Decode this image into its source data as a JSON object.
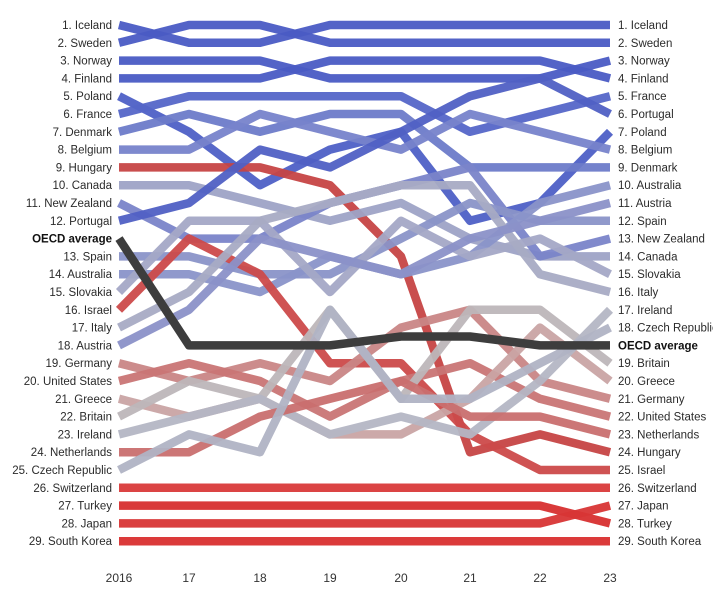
{
  "chart_data": {
    "type": "line",
    "subtype": "bump",
    "x": [
      "2016",
      "17",
      "18",
      "19",
      "20",
      "21",
      "22",
      "23"
    ],
    "rank_axis": {
      "min": 1,
      "max": 29,
      "oecd_slot_after_rank": 12,
      "inverted": true
    },
    "grid": false,
    "legend": "none",
    "left_labels": [
      "1. Iceland",
      "2. Sweden",
      "3. Norway",
      "4. Finland",
      "5. Poland",
      "6. France",
      "7. Denmark",
      "8. Belgium",
      "9. Hungary",
      "10. Canada",
      "11. New Zealand",
      "12. Portugal",
      "OECD average",
      "13. Spain",
      "14. Australia",
      "15. Slovakia",
      "16. Israel",
      "17. Italy",
      "18. Austria",
      "19. Germany",
      "20. United States",
      "21. Greece",
      "22. Britain",
      "23. Ireland",
      "24. Netherlands",
      "25. Czech Republic",
      "26. Switzerland",
      "27. Turkey",
      "28. Japan",
      "29. South Korea"
    ],
    "right_labels": [
      "1. Iceland",
      "2. Sweden",
      "3. Norway",
      "4. Finland",
      "5. France",
      "6. Portugal",
      "7. Poland",
      "8. Belgium",
      "9. Denmark",
      "10. Australia",
      "11. Austria",
      "12. Spain",
      "13. New Zealand",
      "14. Canada",
      "15. Slovakia",
      "16. Italy",
      "17. Ireland",
      "18. Czech Republic",
      "OECD average",
      "19. Britain",
      "20. Greece",
      "21. Germany",
      "22. United States",
      "23. Netherlands",
      "24. Hungary",
      "25. Israel",
      "26. Switzerland",
      "27. Japan",
      "28. Turkey",
      "29. South Korea"
    ],
    "series": [
      {
        "country": "Iceland",
        "ranks": [
          1,
          2,
          2,
          1,
          1,
          1,
          1,
          1
        ],
        "color": "#4a5bc4"
      },
      {
        "country": "Sweden",
        "ranks": [
          2,
          1,
          1,
          2,
          2,
          2,
          2,
          2
        ],
        "color": "#4a5bc4"
      },
      {
        "country": "Norway",
        "ranks": [
          3,
          3,
          3,
          4,
          4,
          4,
          4,
          3
        ],
        "color": "#4a5bc4"
      },
      {
        "country": "Finland",
        "ranks": [
          4,
          4,
          4,
          3,
          3,
          3,
          3,
          4
        ],
        "color": "#4a5bc4"
      },
      {
        "country": "Poland",
        "ranks": [
          5,
          7,
          10,
          8,
          7,
          12,
          11,
          7
        ],
        "color": "#4e60c6"
      },
      {
        "country": "France",
        "ranks": [
          6,
          5,
          5,
          5,
          5,
          7,
          6,
          5
        ],
        "color": "#5566c8"
      },
      {
        "country": "Denmark",
        "ranks": [
          7,
          6,
          7,
          6,
          6,
          9,
          9,
          9
        ],
        "color": "#6d7bc9"
      },
      {
        "country": "Belgium",
        "ranks": [
          8,
          8,
          6,
          7,
          8,
          6,
          7,
          8
        ],
        "color": "#7783cb"
      },
      {
        "country": "Hungary",
        "ranks": [
          9,
          9,
          9,
          10,
          14,
          24,
          23,
          24
        ],
        "color": "#c64545"
      },
      {
        "country": "Canada",
        "ranks": [
          10,
          10,
          11,
          12,
          11,
          13,
          14,
          14
        ],
        "color": "#9ea3c6"
      },
      {
        "country": "New Zealand",
        "ranks": [
          11,
          13,
          13,
          11,
          10,
          9,
          14,
          13
        ],
        "color": "#7a84c9"
      },
      {
        "country": "Portugal",
        "ranks": [
          12,
          11,
          8,
          9,
          7,
          5,
          4,
          6
        ],
        "color": "#5060c4"
      },
      {
        "country": "Spain",
        "ranks": [
          13,
          14,
          15,
          15,
          13,
          11,
          12,
          12
        ],
        "color": "#8a93c8"
      },
      {
        "country": "Australia",
        "ranks": [
          14,
          15,
          16,
          14,
          15,
          14,
          11,
          10
        ],
        "color": "#8a93c9"
      },
      {
        "country": "Slovakia",
        "ranks": [
          15,
          12,
          12,
          16,
          12,
          14,
          13,
          15
        ],
        "color": "#a4a8c6"
      },
      {
        "country": "Israel",
        "ranks": [
          16,
          13,
          15,
          19,
          19,
          23,
          25,
          25
        ],
        "color": "#cc4a4a"
      },
      {
        "country": "Italy",
        "ranks": [
          17,
          16,
          12,
          11,
          10,
          10,
          15,
          16
        ],
        "color": "#a8abc4"
      },
      {
        "country": "Austria",
        "ranks": [
          18,
          17,
          13,
          14,
          15,
          13,
          12,
          11
        ],
        "color": "#8b91c8"
      },
      {
        "country": "Germany",
        "ranks": [
          19,
          20,
          19,
          20,
          18,
          17,
          20,
          21
        ],
        "color": "#c98686"
      },
      {
        "country": "United States",
        "ranks": [
          20,
          19,
          20,
          22,
          20,
          19,
          21,
          22
        ],
        "color": "#c97575"
      },
      {
        "country": "Greece",
        "ranks": [
          21,
          22,
          21,
          23,
          23,
          21,
          18,
          20
        ],
        "color": "#c9a4a4"
      },
      {
        "country": "Britain",
        "ranks": [
          22,
          20,
          21,
          17,
          21,
          17,
          17,
          19
        ],
        "color": "#bdb6b9"
      },
      {
        "country": "Ireland",
        "ranks": [
          23,
          22,
          21,
          23,
          22,
          23,
          20,
          17
        ],
        "color": "#b4b6c4"
      },
      {
        "country": "Netherlands",
        "ranks": [
          24,
          24,
          22,
          21,
          20,
          22,
          22,
          23
        ],
        "color": "#c96f6f"
      },
      {
        "country": "Czech Republic",
        "ranks": [
          25,
          23,
          24,
          17,
          21,
          21,
          19,
          18
        ],
        "color": "#b0b3c4"
      },
      {
        "country": "Switzerland",
        "ranks": [
          26,
          26,
          26,
          26,
          26,
          26,
          26,
          26
        ],
        "color": "#d93a3a"
      },
      {
        "country": "Turkey",
        "ranks": [
          27,
          27,
          27,
          27,
          27,
          27,
          27,
          28
        ],
        "color": "#d72f2f"
      },
      {
        "country": "Japan",
        "ranks": [
          28,
          28,
          28,
          28,
          28,
          28,
          28,
          27
        ],
        "color": "#d83535"
      },
      {
        "country": "South Korea",
        "ranks": [
          29,
          29,
          29,
          29,
          29,
          29,
          29,
          29
        ],
        "color": "#d92f2f"
      }
    ],
    "oecd_average": {
      "slots": [
        12.5,
        18.5,
        18.5,
        18.5,
        18,
        18,
        18.5,
        18.5
      ],
      "color": "#3d3d3d"
    }
  }
}
